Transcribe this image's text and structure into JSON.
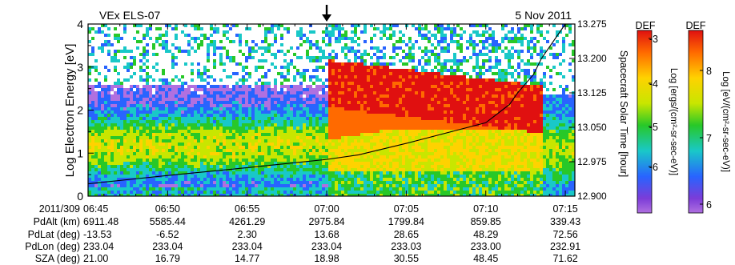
{
  "chart_data": {
    "type": "heatmap",
    "title_left": "VEx ELS-07",
    "title_right": "5 Nov 2011",
    "ylabel": "Log Electron Energy [eV]",
    "ylabel_right": "Spacecraft Solar Time [hour]",
    "ylim": [
      0,
      4
    ],
    "ylim_right": [
      12.9,
      13.275
    ],
    "y_ticks": [
      "0",
      "1",
      "2",
      "3",
      "4"
    ],
    "y_ticks_right": [
      "12.900",
      "12.975",
      "13.050",
      "13.125",
      "13.200",
      "13.275"
    ],
    "x_tick_labels": [
      "06:45",
      "06:50",
      "06:55",
      "07:00",
      "07:05",
      "07:10",
      "07:15"
    ],
    "marker_time": "07:00",
    "solar_time_line": {
      "x_minutes_after_0645": [
        0,
        5,
        10,
        15,
        17,
        20,
        25,
        26.5,
        27,
        28,
        28.5,
        30
      ],
      "values": [
        12.927,
        12.945,
        12.962,
        12.98,
        12.99,
        13.015,
        13.06,
        13.1,
        13.125,
        13.165,
        13.2,
        13.275
      ]
    },
    "colorbars": [
      {
        "label": "DEF",
        "axis_label": "Log [ergs/(cm²-sr-sec-eV)]",
        "ticks": [
          "-3",
          "-4",
          "-5",
          "-6"
        ]
      },
      {
        "label": "DEF",
        "axis_label": "Log [eV/(cm²-sr-sec-eV)]",
        "ticks": [
          "8",
          "7",
          "6"
        ]
      }
    ],
    "table": {
      "rows": [
        {
          "label": "2011/309",
          "values": [
            "06:45",
            "06:50",
            "06:55",
            "07:00",
            "07:05",
            "07:10",
            "07:15"
          ]
        },
        {
          "label": "PdAlt (km)",
          "values": [
            "6911.48",
            "5585.44",
            "4261.29",
            "2975.84",
            "1799.84",
            "859.85",
            "339.43"
          ]
        },
        {
          "label": "PdLat (deg)",
          "values": [
            "-13.53",
            "-6.52",
            "2.30",
            "13.68",
            "28.65",
            "48.29",
            "72.56"
          ]
        },
        {
          "label": "PdLon (deg)",
          "values": [
            "233.04",
            "233.04",
            "233.04",
            "233.04",
            "233.03",
            "233.00",
            "232.91"
          ]
        },
        {
          "label": "SZA (deg)",
          "values": [
            "21.00",
            "16.79",
            "14.77",
            "18.98",
            "30.55",
            "48.45",
            "71.62"
          ]
        }
      ]
    }
  }
}
